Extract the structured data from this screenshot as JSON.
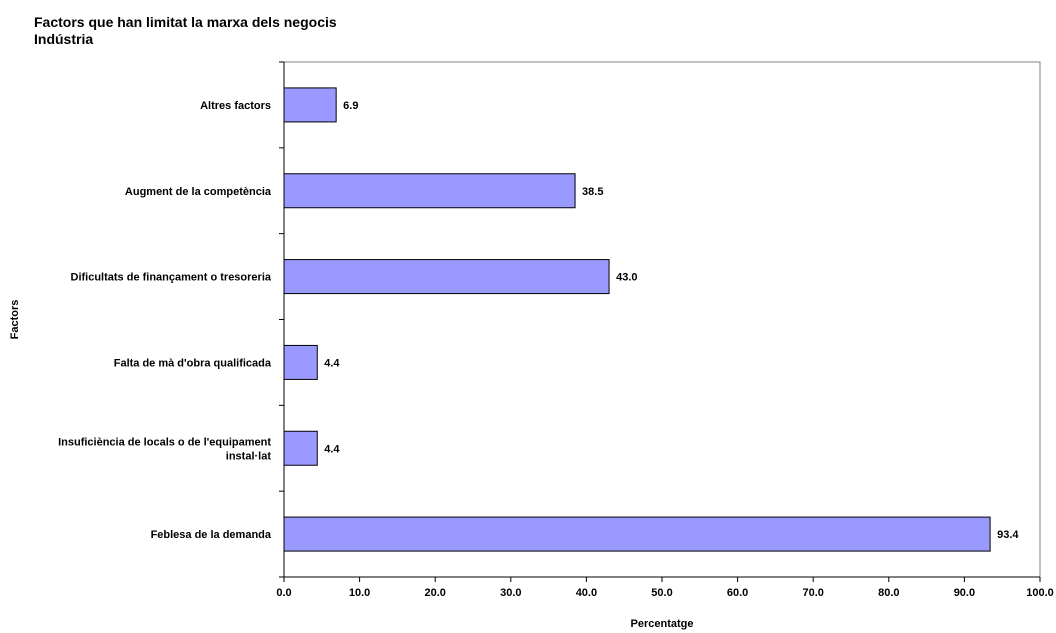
{
  "chart_data": {
    "type": "bar",
    "orientation": "horizontal",
    "title": "Factors que han limitat  la marxa dels negocis",
    "subtitle": "Indústria",
    "xlabel": "Percentatge",
    "ylabel": "Factors",
    "xlim": [
      0,
      100
    ],
    "x_ticks": [
      "0.0",
      "10.0",
      "20.0",
      "30.0",
      "40.0",
      "50.0",
      "60.0",
      "70.0",
      "80.0",
      "90.0",
      "100.0"
    ],
    "grid": false,
    "bar_color": "#9999ff",
    "categories": [
      [
        "Altres factors"
      ],
      [
        "Augment de la competència"
      ],
      [
        "Dificultats de finançament o tresoreria"
      ],
      [
        "Falta de mà d'obra qualificada"
      ],
      [
        "Insuficiència de locals o de l'equipament",
        "instal·lat"
      ],
      [
        "Feblesa de la demanda"
      ]
    ],
    "values": [
      6.9,
      38.5,
      43.0,
      4.4,
      4.4,
      93.4
    ],
    "data_labels": [
      "6.9",
      "38.5",
      "43.0",
      "4.4",
      "4.4",
      "93.4"
    ]
  }
}
